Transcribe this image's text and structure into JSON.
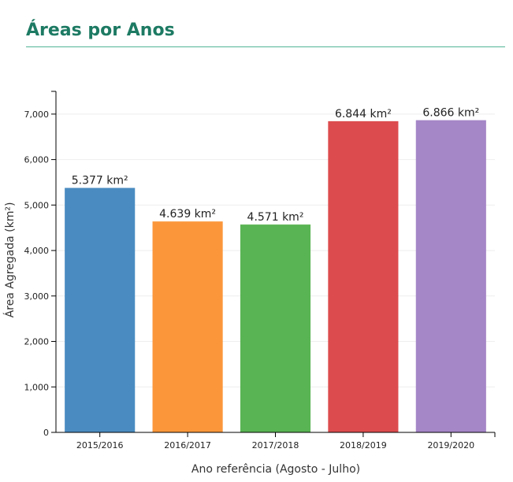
{
  "page": {
    "title": "Áreas por Anos"
  },
  "colors": {
    "title": "#1d7a63",
    "title_rule": "#53b596",
    "axis": "#000000",
    "grid": "#eeeeee"
  },
  "chart_data": {
    "type": "bar",
    "title": "",
    "xlabel": "Ano referência (Agosto - Julho)",
    "ylabel": "Área Agregada (km²)",
    "ylim": [
      0,
      7500
    ],
    "yticks": [
      0,
      1000,
      2000,
      3000,
      4000,
      5000,
      6000,
      7000
    ],
    "ytick_labels": [
      "0",
      "1,000",
      "2,000",
      "3,000",
      "4,000",
      "5,000",
      "6,000",
      "7,000"
    ],
    "grid": true,
    "legend": "none",
    "categories": [
      "2015/2016",
      "2016/2017",
      "2017/2018",
      "2018/2019",
      "2019/2020"
    ],
    "values": [
      5377,
      4639,
      4571,
      6844,
      6866
    ],
    "data_labels": [
      "5.377 km²",
      "4.639 km²",
      "4.571 km²",
      "6.844 km²",
      "6.866 km²"
    ],
    "bar_colors": [
      "#4a8cc1",
      "#fb973a",
      "#59b453",
      "#dc4c4e",
      "#a586c7"
    ]
  }
}
